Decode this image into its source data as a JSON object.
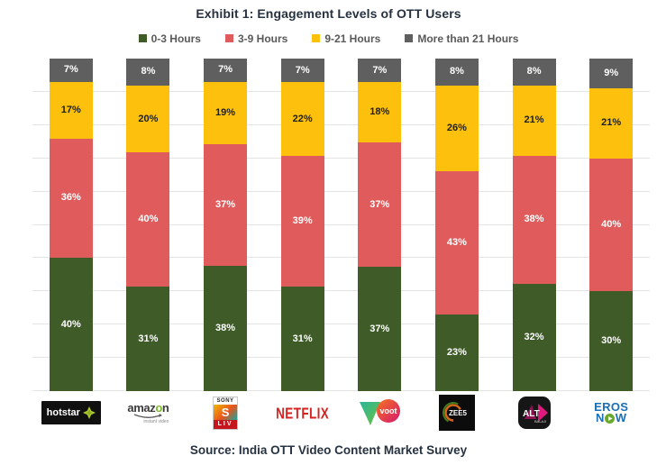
{
  "chart_data": {
    "type": "bar",
    "stacked": true,
    "title": "Exhibit 1: Engagement Levels of OTT Users",
    "source": "Source: India OTT Video Content Market Survey",
    "categories": [
      "Hotstar",
      "Amazon Instant Video",
      "Sony LIV",
      "Netflix",
      "Voot",
      "ZEE5",
      "ALT Balaji",
      "Eros Now"
    ],
    "series": [
      {
        "name": "0-3 Hours",
        "color": "#3e5b28",
        "label_color": "#ffffff",
        "values": [
          40,
          31,
          38,
          31,
          37,
          23,
          32,
          30
        ]
      },
      {
        "name": "3-9 Hours",
        "color": "#e05c5c",
        "label_color": "#ffffff",
        "values": [
          36,
          40,
          37,
          39,
          37,
          43,
          38,
          40
        ]
      },
      {
        "name": "9-21 Hours",
        "color": "#fcc00d",
        "label_color": "#1f1f1f",
        "values": [
          17,
          20,
          19,
          22,
          18,
          26,
          21,
          21
        ]
      },
      {
        "name": "More than 21 Hours",
        "color": "#5f5f5f",
        "label_color": "#ffffff",
        "values": [
          7,
          8,
          7,
          7,
          7,
          8,
          8,
          9
        ]
      }
    ],
    "value_suffix": "%",
    "ylim": [
      0,
      100
    ],
    "y_gridline_step_pct": 10,
    "grid": "horizontal light-gray lines, no visible y-axis tick labels",
    "legend_position": "top-center"
  },
  "logos": {
    "hotstar": {
      "text": "hotstar"
    },
    "amazon": {
      "t1": "amaz",
      "o": "o",
      "t2": "n",
      "subtext": "instant video"
    },
    "sonyliv": {
      "brand": "SONY",
      "s": "S",
      "text": "LIV"
    },
    "netflix": {
      "text": "NETFLIX"
    },
    "voot": {
      "text": "voot"
    },
    "zee5": {
      "text": "ZEE5"
    },
    "alt": {
      "text": "ALT",
      "subtext": "BALAJI"
    },
    "erosnow": {
      "line1": "EROS",
      "n": "N",
      "w": "W"
    }
  }
}
